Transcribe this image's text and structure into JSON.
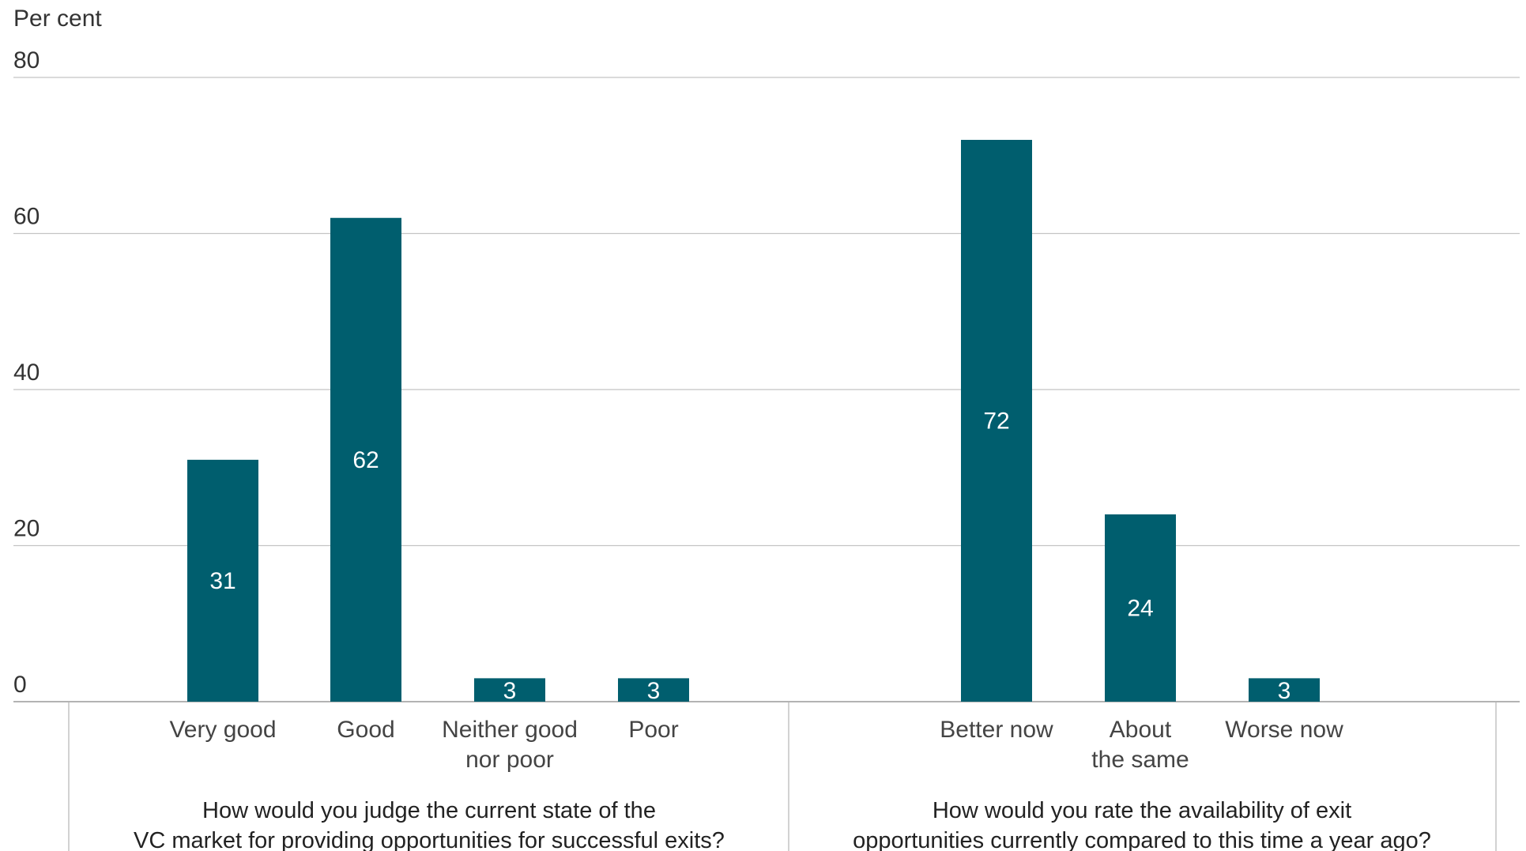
{
  "chart_data": {
    "type": "bar",
    "ylabel": "Per cent",
    "ylim": [
      0,
      80
    ],
    "yticks": [
      0,
      20,
      40,
      60,
      80
    ],
    "grid": true,
    "bar_color": "#005e6e",
    "groups": [
      {
        "title_lines": [
          "How would you judge the current state of the",
          "VC market for providing opportunities for successful exits?"
        ],
        "categories": [
          {
            "label_lines": [
              "Very good"
            ],
            "value": 31
          },
          {
            "label_lines": [
              "Good"
            ],
            "value": 62
          },
          {
            "label_lines": [
              "Neither good",
              "nor poor"
            ],
            "value": 3
          },
          {
            "label_lines": [
              "Poor"
            ],
            "value": 3
          }
        ]
      },
      {
        "title_lines": [
          "How would you rate the availability of exit",
          "opportunities currently compared to this time a year ago?"
        ],
        "categories": [
          {
            "label_lines": [
              "Better now"
            ],
            "value": 72
          },
          {
            "label_lines": [
              "About",
              "the same"
            ],
            "value": 24
          },
          {
            "label_lines": [
              "Worse now"
            ],
            "value": 3
          }
        ]
      }
    ]
  }
}
